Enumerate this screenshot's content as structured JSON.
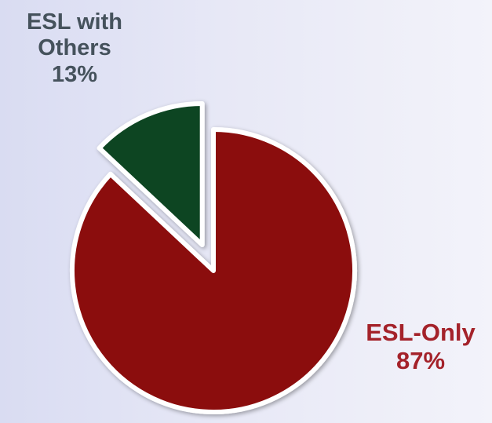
{
  "chart_data": {
    "type": "pie",
    "slices": [
      {
        "name": "ESL-Only",
        "label_line1": "ESL-Only",
        "pct_label": "87%",
        "value": 87,
        "color": "#8b0a0a",
        "exploded": false
      },
      {
        "name": "ESL with Others",
        "label_line1": "ESL with",
        "label_line2": "Others",
        "pct_label": "13%",
        "value": 13,
        "color": "#0b4422",
        "exploded": true
      }
    ],
    "legend": "none"
  }
}
